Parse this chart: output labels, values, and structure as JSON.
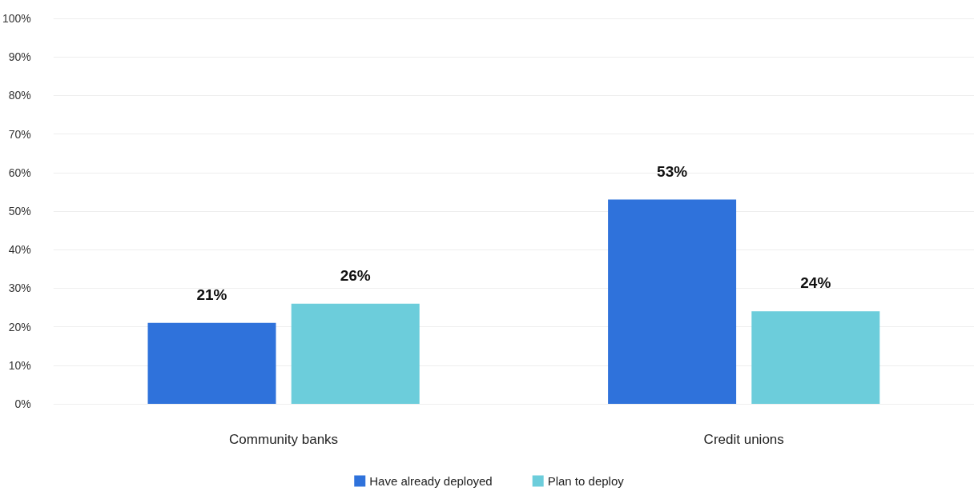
{
  "chart_data": {
    "type": "bar",
    "categories": [
      "Community banks",
      "Credit unions"
    ],
    "series": [
      {
        "name": "Have already deployed",
        "color": "#2f72db",
        "values": [
          21,
          53
        ],
        "value_labels": [
          "21%",
          "53%"
        ]
      },
      {
        "name": "Plan to deploy",
        "color": "#6ccddb",
        "values": [
          26,
          24
        ],
        "value_labels": [
          "26%",
          "24%"
        ]
      }
    ],
    "ylim": [
      0,
      100
    ],
    "yticks": [
      {
        "value": 0,
        "label": "0%"
      },
      {
        "value": 10,
        "label": "10%"
      },
      {
        "value": 20,
        "label": "20%"
      },
      {
        "value": 30,
        "label": "30%"
      },
      {
        "value": 40,
        "label": "40%"
      },
      {
        "value": 50,
        "label": "50%"
      },
      {
        "value": 60,
        "label": "60%"
      },
      {
        "value": 70,
        "label": "70%"
      },
      {
        "value": 80,
        "label": "80%"
      },
      {
        "value": 90,
        "label": "90%"
      },
      {
        "value": 100,
        "label": "100%"
      }
    ],
    "grid": "y",
    "legend": "bottom"
  }
}
